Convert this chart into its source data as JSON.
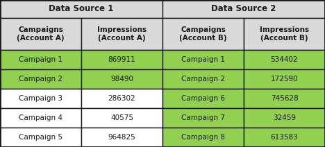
{
  "title1": "Data Source 1",
  "title2": "Data Source 2",
  "col_headers": [
    "Campaigns\n(Account A)",
    "Impressions\n(Account A)",
    "Campaigns\n(Account B)",
    "Impressions\n(Account B)"
  ],
  "rows": [
    [
      "Campaign 1",
      "869911",
      "Campaign 1",
      "534402"
    ],
    [
      "Campaign 2",
      "98490",
      "Campaign 2",
      "172590"
    ],
    [
      "Campaign 3",
      "286302",
      "Campaign 6",
      "745628"
    ],
    [
      "Campaign 4",
      "40575",
      "Campaign 7",
      "32459"
    ],
    [
      "Campaign 5",
      "964825",
      "Campaign 8",
      "613583"
    ]
  ],
  "left_row_colors": [
    "#92d050",
    "#92d050",
    "#ffffff",
    "#ffffff",
    "#ffffff"
  ],
  "right_row_colors": [
    "#92d050",
    "#92d050",
    "#92d050",
    "#92d050",
    "#92d050"
  ],
  "header_bg": "#d9d9d9",
  "title_bg": "#d9d9d9",
  "border_color": "#1a1a1a",
  "text_color": "#1a1a1a",
  "fig_width": 4.68,
  "fig_height": 2.12,
  "dpi": 100,
  "title_fontsize": 8.5,
  "header_fontsize": 7.5,
  "data_fontsize": 7.5
}
